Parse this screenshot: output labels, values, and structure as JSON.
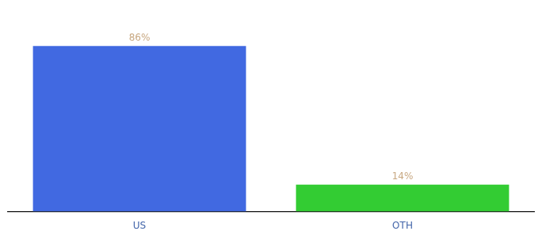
{
  "chart_data": {
    "type": "bar",
    "categories": [
      "US",
      "OTH"
    ],
    "values": [
      86,
      14
    ],
    "colors": [
      "#4169e1",
      "#33cc33"
    ],
    "ylim": [
      0,
      100
    ],
    "grid": false,
    "data_labels": true,
    "value_labels": [
      "86%",
      "14%"
    ],
    "tick_labels": "x"
  }
}
